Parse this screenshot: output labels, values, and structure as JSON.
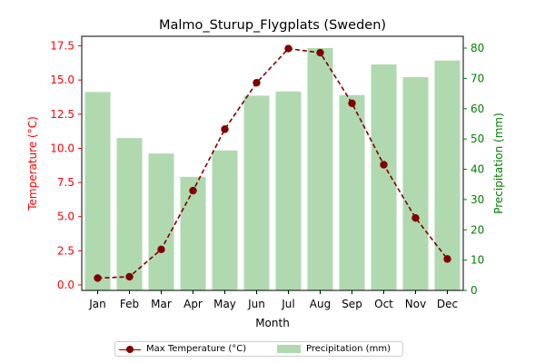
{
  "chart_data": {
    "type": "bar+line",
    "title": "Malmo_Sturup_Flygplats (Sweden)",
    "xlabel": "Month",
    "categories": [
      "Jan",
      "Feb",
      "Mar",
      "Apr",
      "May",
      "Jun",
      "Jul",
      "Aug",
      "Sep",
      "Oct",
      "Nov",
      "Dec"
    ],
    "series": [
      {
        "name": "Max Temperature (°C)",
        "kind": "line",
        "axis": "left",
        "color": "#800000",
        "values": [
          0.5,
          0.6,
          2.6,
          6.9,
          11.4,
          14.8,
          17.3,
          17.0,
          13.3,
          8.8,
          4.9,
          1.9
        ]
      },
      {
        "name": "Precipitation (mm)",
        "kind": "bar",
        "axis": "right",
        "color": "#b0d9b0",
        "values": [
          65.5,
          50.3,
          45.2,
          37.5,
          46.2,
          64.3,
          65.7,
          80.0,
          64.5,
          74.6,
          70.4,
          75.9
        ]
      }
    ],
    "y_left": {
      "label": "Temperature (°C)",
      "color": "#ff0000",
      "ylim": [
        -0.4,
        18.2
      ],
      "ticks": [
        "0.0",
        "2.5",
        "5.0",
        "7.5",
        "10.0",
        "12.5",
        "15.0",
        "17.5"
      ]
    },
    "y_right": {
      "label": "Precipitation (mm)",
      "color": "#008000",
      "ylim": [
        0,
        83.9
      ],
      "ticks": [
        "0",
        "10",
        "20",
        "30",
        "40",
        "50",
        "60",
        "70",
        "80"
      ]
    },
    "grid": false,
    "legend": "bottom-center"
  }
}
